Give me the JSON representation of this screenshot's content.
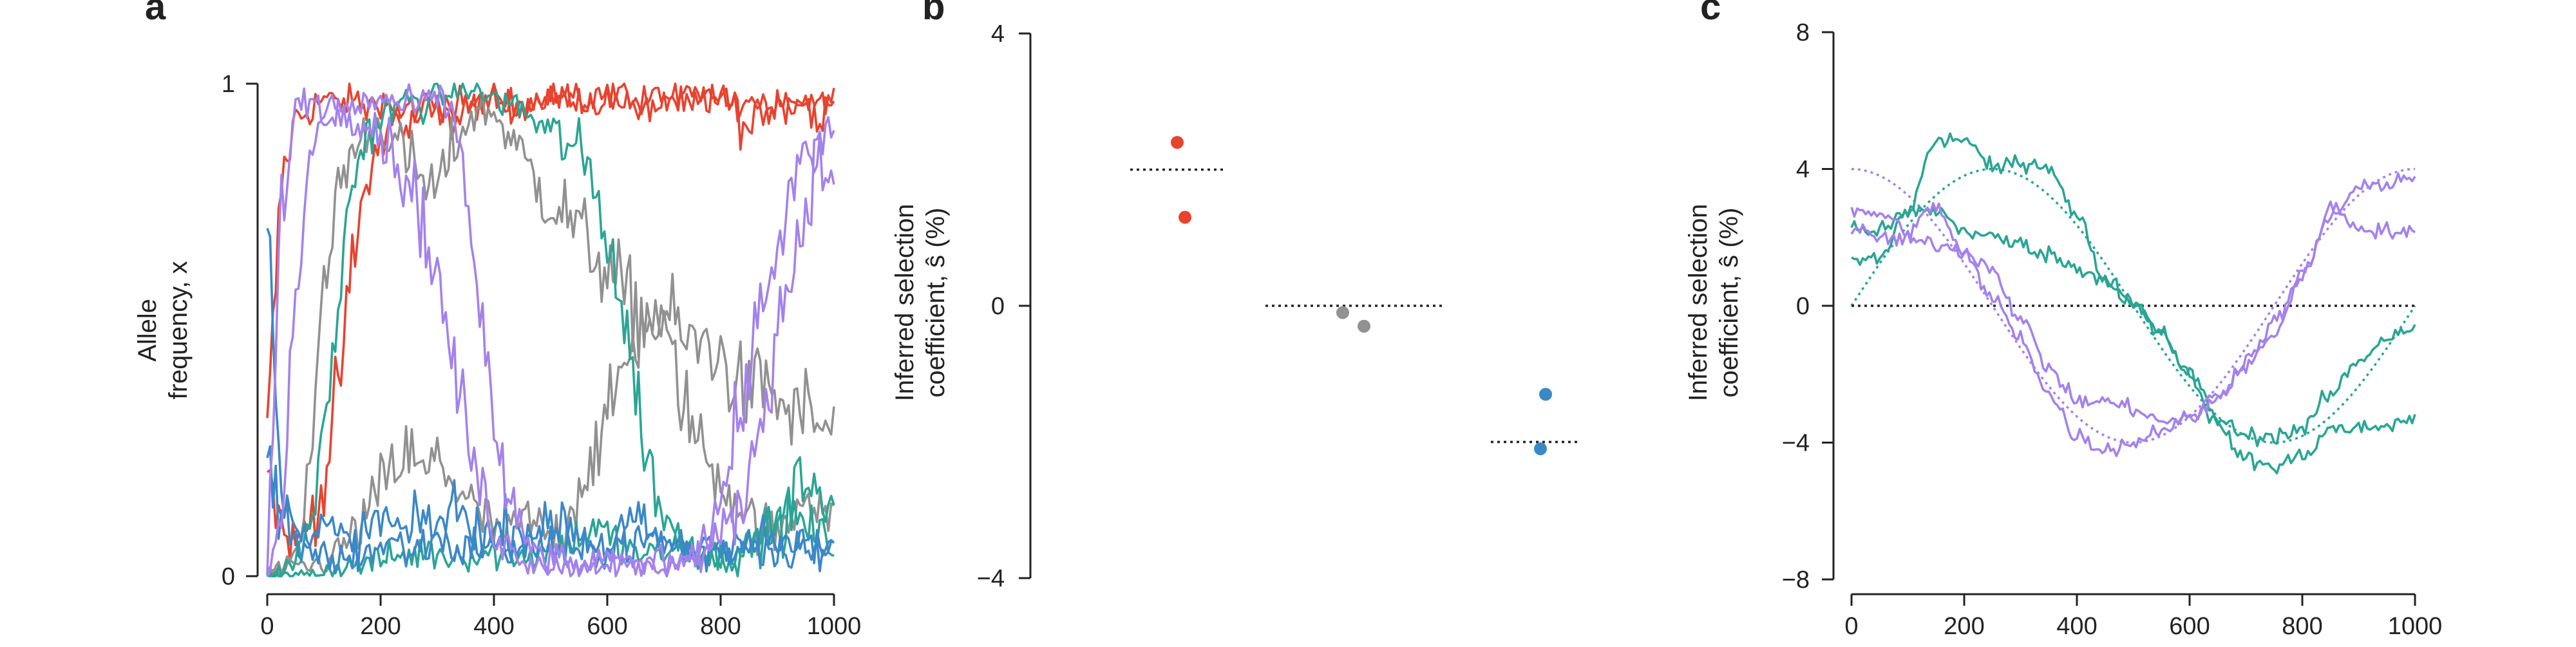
{
  "chart_data": [
    {
      "type": "line",
      "panel_label": "a",
      "ylabel": [
        "Allele",
        "frequency, x"
      ],
      "xlabel": "",
      "xlim": [
        0,
        1000
      ],
      "ylim": [
        0,
        1
      ],
      "xticks": [
        "0",
        "200",
        "400",
        "600",
        "800",
        "1000"
      ],
      "xtick_values": [
        0,
        200,
        400,
        600,
        800,
        1000
      ],
      "yticks": [
        "0",
        "1"
      ],
      "ytick_values": [
        0,
        1
      ],
      "x": [
        0,
        25,
        50,
        75,
        100,
        125,
        150,
        175,
        200,
        225,
        250,
        275,
        300,
        325,
        350,
        375,
        400,
        425,
        450,
        475,
        500,
        525,
        550,
        575,
        600,
        625,
        650,
        675,
        700,
        725,
        750,
        775,
        800,
        825,
        850,
        875,
        900,
        925,
        950,
        975,
        1000
      ],
      "series": [
        {
          "color": "#e8432f",
          "values": [
            0.28,
            0.8,
            0.93,
            0.95,
            0.97,
            0.96,
            0.97,
            0.95,
            0.97,
            0.94,
            0.9,
            0.95,
            0.93,
            0.92,
            0.96,
            0.95,
            0.97,
            0.95,
            0.96,
            0.97,
            0.98,
            0.97,
            0.96,
            0.97,
            0.98,
            0.97,
            0.95,
            0.97,
            0.98,
            0.96,
            0.94,
            0.97,
            0.98,
            0.95,
            0.89,
            0.95,
            0.97,
            0.96,
            0.97,
            0.94,
            0.98
          ]
        },
        {
          "color": "#e8432f",
          "values": [
            0.22,
            0.1,
            0.06,
            0.12,
            0.18,
            0.38,
            0.62,
            0.8,
            0.88,
            0.93,
            0.95,
            0.96,
            0.97,
            0.95,
            0.96,
            0.95,
            0.97,
            0.96,
            0.95,
            0.97,
            0.96,
            0.98,
            0.97,
            0.96,
            0.97,
            0.98,
            0.97,
            0.95,
            0.96,
            0.97,
            0.98,
            0.97,
            0.96,
            0.95,
            0.97,
            0.96,
            0.95,
            0.97,
            0.96,
            0.95,
            0.97
          ]
        },
        {
          "color": "#919191",
          "values": [
            0.0,
            0.02,
            0.04,
            0.25,
            0.55,
            0.8,
            0.86,
            0.9,
            0.92,
            0.88,
            0.84,
            0.8,
            0.78,
            0.86,
            0.92,
            0.95,
            0.94,
            0.9,
            0.85,
            0.8,
            0.76,
            0.74,
            0.7,
            0.66,
            0.62,
            0.58,
            0.54,
            0.5,
            0.54,
            0.5,
            0.46,
            0.48,
            0.44,
            0.4,
            0.36,
            0.4,
            0.36,
            0.32,
            0.34,
            0.3,
            0.3
          ]
        },
        {
          "color": "#919191",
          "values": [
            0.0,
            0.01,
            0.02,
            0.02,
            0.03,
            0.05,
            0.08,
            0.12,
            0.18,
            0.22,
            0.25,
            0.2,
            0.24,
            0.2,
            0.16,
            0.12,
            0.1,
            0.08,
            0.12,
            0.1,
            0.08,
            0.1,
            0.18,
            0.25,
            0.3,
            0.42,
            0.48,
            0.55,
            0.48,
            0.4,
            0.3,
            0.24,
            0.2,
            0.16,
            0.12,
            0.1,
            0.08,
            0.12,
            0.18,
            0.15,
            0.12
          ]
        },
        {
          "color": "#2aa595",
          "values": [
            0.0,
            0.01,
            0.03,
            0.1,
            0.28,
            0.55,
            0.8,
            0.9,
            0.93,
            0.95,
            0.97,
            0.96,
            0.97,
            0.98,
            0.99,
            0.98,
            0.97,
            0.96,
            0.95,
            0.92,
            0.9,
            0.88,
            0.86,
            0.8,
            0.7,
            0.55,
            0.38,
            0.22,
            0.12,
            0.08,
            0.06,
            0.05,
            0.04,
            0.04,
            0.06,
            0.08,
            0.1,
            0.12,
            0.1,
            0.08,
            0.06
          ]
        },
        {
          "color": "#2aa595",
          "values": [
            0.0,
            0.0,
            0.0,
            0.01,
            0.01,
            0.02,
            0.02,
            0.03,
            0.03,
            0.04,
            0.04,
            0.05,
            0.05,
            0.04,
            0.05,
            0.04,
            0.05,
            0.04,
            0.05,
            0.04,
            0.05,
            0.06,
            0.08,
            0.1,
            0.08,
            0.06,
            0.05,
            0.04,
            0.05,
            0.06,
            0.05,
            0.04,
            0.03,
            0.05,
            0.06,
            0.08,
            0.12,
            0.16,
            0.2,
            0.18,
            0.14
          ]
        },
        {
          "color": "#3b88c8",
          "values": [
            0.75,
            0.15,
            0.08,
            0.05,
            0.04,
            0.03,
            0.04,
            0.05,
            0.06,
            0.07,
            0.05,
            0.06,
            0.08,
            0.06,
            0.05,
            0.07,
            0.06,
            0.05,
            0.07,
            0.08,
            0.06,
            0.05,
            0.04,
            0.06,
            0.05,
            0.07,
            0.06,
            0.08,
            0.07,
            0.06,
            0.05,
            0.04,
            0.06,
            0.05,
            0.07,
            0.06,
            0.05,
            0.06,
            0.07,
            0.05,
            0.06
          ]
        },
        {
          "color": "#3b88c8",
          "values": [
            0.25,
            0.12,
            0.09,
            0.07,
            0.1,
            0.08,
            0.06,
            0.09,
            0.12,
            0.1,
            0.08,
            0.12,
            0.1,
            0.14,
            0.12,
            0.1,
            0.08,
            0.11,
            0.09,
            0.07,
            0.1,
            0.12,
            0.09,
            0.07,
            0.06,
            0.09,
            0.11,
            0.08,
            0.07,
            0.06,
            0.05,
            0.08,
            0.06,
            0.09,
            0.07,
            0.08,
            0.06,
            0.07,
            0.05,
            0.04,
            0.06
          ]
        },
        {
          "color": "#a482ec",
          "values": [
            0.0,
            0.75,
            0.95,
            0.97,
            0.96,
            0.95,
            0.94,
            0.93,
            0.9,
            0.85,
            0.8,
            0.72,
            0.6,
            0.45,
            0.3,
            0.18,
            0.1,
            0.06,
            0.04,
            0.03,
            0.02,
            0.02,
            0.02,
            0.03,
            0.03,
            0.02,
            0.03,
            0.02,
            0.02,
            0.03,
            0.04,
            0.05,
            0.08,
            0.12,
            0.2,
            0.35,
            0.5,
            0.62,
            0.75,
            0.88,
            0.92
          ]
        },
        {
          "color": "#a482ec",
          "values": [
            0.0,
            0.1,
            0.55,
            0.85,
            0.92,
            0.94,
            0.95,
            0.96,
            0.97,
            0.96,
            0.95,
            0.96,
            0.97,
            0.95,
            0.8,
            0.55,
            0.3,
            0.15,
            0.08,
            0.05,
            0.04,
            0.03,
            0.02,
            0.02,
            0.03,
            0.02,
            0.02,
            0.03,
            0.04,
            0.03,
            0.05,
            0.08,
            0.15,
            0.28,
            0.42,
            0.55,
            0.68,
            0.78,
            0.85,
            0.82,
            0.8
          ]
        }
      ]
    },
    {
      "type": "scatter",
      "panel_label": "b",
      "ylabel": [
        "Inferred selection",
        "coefficient, ŝ (%)"
      ],
      "xlabel": "",
      "ylim": [
        -4,
        4
      ],
      "yticks": [
        "−4",
        "0",
        "4"
      ],
      "ytick_values": [
        -4,
        0,
        4
      ],
      "groups": [
        {
          "color": "#e8432f",
          "true_value": 2,
          "points": [
            2.4,
            1.3
          ]
        },
        {
          "color": "#919191",
          "true_value": 0,
          "points": [
            -0.1,
            -0.3
          ]
        },
        {
          "color": "#3b88c8",
          "true_value": -2,
          "points": [
            -1.3,
            -2.1
          ]
        }
      ]
    },
    {
      "type": "line",
      "panel_label": "c",
      "ylabel": [
        "Inferred selection",
        "coefficient, ŝ (%)"
      ],
      "xlabel": "",
      "xlim": [
        0,
        1000
      ],
      "ylim": [
        -8,
        8
      ],
      "xticks": [
        "0",
        "200",
        "400",
        "600",
        "800",
        "1000"
      ],
      "xtick_values": [
        0,
        200,
        400,
        600,
        800,
        1000
      ],
      "yticks": [
        "−8",
        "−4",
        "0",
        "4",
        "8"
      ],
      "ytick_values": [
        -8,
        -4,
        0,
        4,
        8
      ],
      "x": [
        0,
        50,
        100,
        150,
        200,
        250,
        300,
        350,
        400,
        450,
        500,
        550,
        600,
        650,
        700,
        750,
        800,
        850,
        900,
        950,
        1000
      ],
      "series": [
        {
          "color": "#2aa595",
          "values": [
            1.3,
            1.4,
            2.8,
            4.8,
            4.9,
            4.0,
            4.2,
            4.1,
            2.6,
            0.8,
            0.1,
            -0.8,
            -2.0,
            -3.5,
            -4.5,
            -4.7,
            -4.4,
            -3.6,
            -3.6,
            -3.5,
            -3.3
          ]
        },
        {
          "color": "#2aa595",
          "values": [
            2.3,
            2.2,
            2.7,
            2.8,
            2.2,
            2.0,
            1.8,
            1.5,
            1.1,
            0.8,
            0.0,
            -0.8,
            -2.0,
            -3.3,
            -3.8,
            -3.8,
            -3.6,
            -2.6,
            -1.6,
            -0.9,
            -0.6
          ]
        },
        {
          "color": "#a482ec",
          "values": [
            2.7,
            2.7,
            2.2,
            2.9,
            1.5,
            0.2,
            -0.9,
            -2.6,
            -3.8,
            -4.2,
            -4.0,
            -3.6,
            -3.3,
            -2.6,
            -1.6,
            -0.5,
            0.9,
            2.6,
            3.4,
            3.6,
            3.8
          ]
        },
        {
          "color": "#a482ec",
          "values": [
            2.2,
            2.0,
            1.9,
            1.8,
            1.6,
            1.1,
            -0.4,
            -1.8,
            -2.8,
            -2.8,
            -3.0,
            -3.4,
            -3.3,
            -2.7,
            -1.8,
            -0.8,
            0.8,
            2.9,
            2.3,
            2.2,
            2.1
          ]
        }
      ],
      "reference_lines": [
        {
          "color": "#2aa595",
          "style": "dotted",
          "function": "4·sin(2πx/1000)"
        },
        {
          "color": "#a482ec",
          "style": "dotted",
          "function": "4·cos(2πx/1000)"
        },
        {
          "color": "#222222",
          "style": "dotted",
          "function": "0"
        }
      ]
    }
  ]
}
